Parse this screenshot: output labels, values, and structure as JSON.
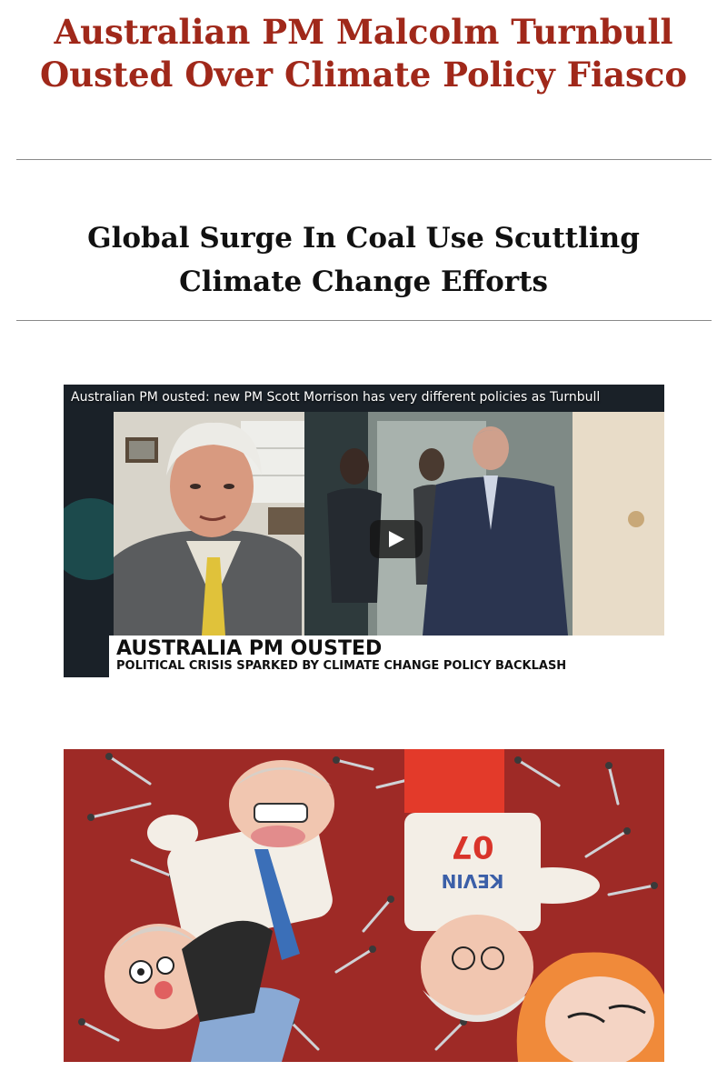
{
  "article": {
    "headline": "Australian PM Malcolm Turnbull Ousted Over Climate Policy Fiasco",
    "related_headline": "Global Surge In Coal Use Scuttling Climate Change Efforts"
  },
  "video": {
    "title": "Australian PM ousted: new PM Scott Morrison has very different policies as Turnbull",
    "lower_third_headline": "AUSTRALIA PM OUSTED",
    "lower_third_subheadline": "POLITICAL CRISIS SPARKED BY CLIMATE CHANGE POLICY BACKLASH",
    "play_icon": "play-icon"
  },
  "cartoon": {
    "shirt_text": "KEVIN 07"
  },
  "colors": {
    "headline": "#a0281a",
    "cartoon_background": "#9e2a26"
  }
}
